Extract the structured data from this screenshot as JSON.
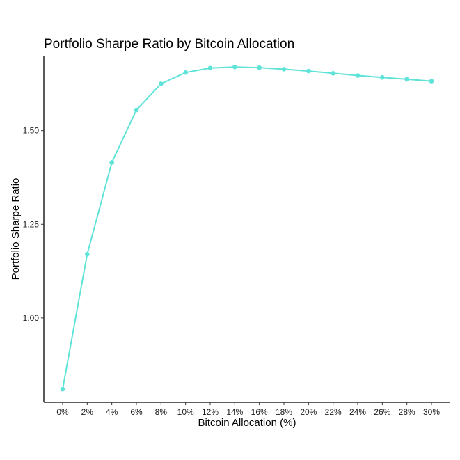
{
  "chart_data": {
    "type": "line",
    "title": "Portfolio Sharpe Ratio by Bitcoin Allocation",
    "xlabel": "Bitcoin Allocation (%)",
    "ylabel": "Portfolio Sharpe Ratio",
    "categories": [
      "0%",
      "2%",
      "4%",
      "6%",
      "8%",
      "10%",
      "12%",
      "14%",
      "16%",
      "18%",
      "20%",
      "22%",
      "24%",
      "26%",
      "28%",
      "30%"
    ],
    "series": [
      {
        "values": [
          0.81,
          1.17,
          1.415,
          1.555,
          1.625,
          1.655,
          1.667,
          1.67,
          1.668,
          1.664,
          1.659,
          1.653,
          1.647,
          1.642,
          1.637,
          1.632
        ],
        "color": "#5ee3d8"
      }
    ],
    "yticks": [
      1.0,
      1.25,
      1.5
    ],
    "ytick_labels": [
      "1.00",
      "1.25",
      "1.50"
    ],
    "ylim": [
      0.775,
      1.7
    ],
    "grid": false,
    "legend": "none"
  }
}
